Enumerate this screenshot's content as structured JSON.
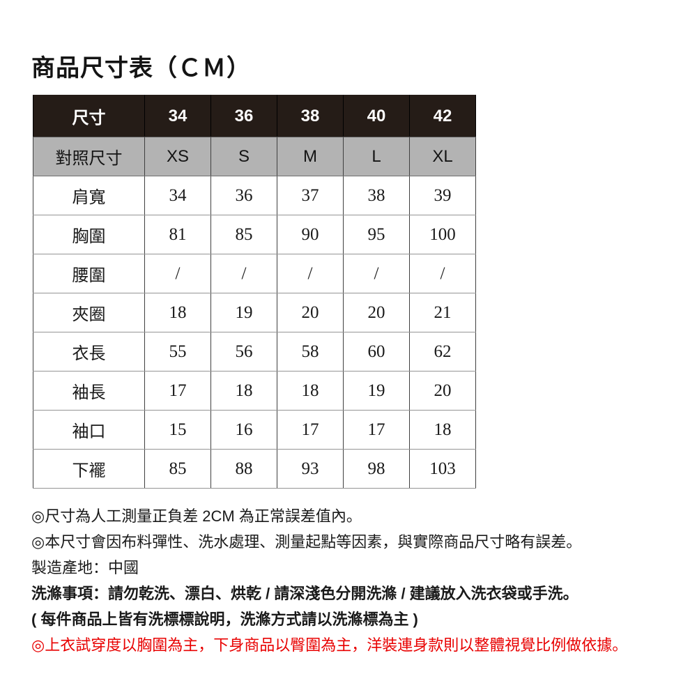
{
  "page": {
    "title": "商品尺寸表（ＣＭ）"
  },
  "size_table": {
    "unit": "CM",
    "columns": [
      "34",
      "36",
      "38",
      "40",
      "42"
    ],
    "rows": [
      {
        "label": "尺寸",
        "values": [
          "34",
          "36",
          "38",
          "40",
          "42"
        ],
        "style": "dark"
      },
      {
        "label": "對照尺寸",
        "values": [
          "XS",
          "S",
          "M",
          "L",
          "XL"
        ],
        "style": "gray"
      },
      {
        "label": "肩寬",
        "values": [
          "34",
          "36",
          "37",
          "38",
          "39"
        ],
        "style": "body"
      },
      {
        "label": "胸圍",
        "values": [
          "81",
          "85",
          "90",
          "95",
          "100"
        ],
        "style": "body"
      },
      {
        "label": "腰圍",
        "values": [
          "/",
          "/",
          "/",
          "/",
          "/"
        ],
        "style": "body"
      },
      {
        "label": "夾圈",
        "values": [
          "18",
          "19",
          "20",
          "20",
          "21"
        ],
        "style": "body"
      },
      {
        "label": "衣長",
        "values": [
          "55",
          "56",
          "58",
          "60",
          "62"
        ],
        "style": "body"
      },
      {
        "label": "袖長",
        "values": [
          "17",
          "18",
          "18",
          "19",
          "20"
        ],
        "style": "body"
      },
      {
        "label": "袖口",
        "values": [
          "15",
          "16",
          "17",
          "17",
          "18"
        ],
        "style": "body"
      },
      {
        "label": "下襬",
        "values": [
          "85",
          "88",
          "93",
          "98",
          "103"
        ],
        "style": "body"
      }
    ]
  },
  "notes": [
    {
      "text": "◎尺寸為人工測量正負差 2CM 為正常誤差值內。",
      "bold": false,
      "color": "#1a1a1a"
    },
    {
      "text": "◎本尺寸會因布料彈性、洗水處理、測量起點等因素，與實際商品尺寸略有誤差。",
      "bold": false,
      "color": "#1a1a1a"
    },
    {
      "text": "製造產地：中國",
      "bold": false,
      "color": "#1a1a1a"
    },
    {
      "text": "洗滌事項：請勿乾洗、漂白、烘乾 / 請深淺色分開洗滌 / 建議放入洗衣袋或手洗。",
      "bold": true,
      "color": "#1a1a1a"
    },
    {
      "text": "( 每件商品上皆有洗標標說明，洗滌方式請以洗滌標為主 )",
      "bold": true,
      "color": "#1a1a1a"
    },
    {
      "text": "◎上衣試穿度以胸圍為主，下身商品以臀圍為主，洋裝連身款則以整體視覺比例做依據。",
      "bold": false,
      "color": "#e80000"
    }
  ],
  "colors": {
    "header_dark_bg": "#251c17",
    "header_dark_text": "#ffffff",
    "compare_gray_bg": "#b3b3b3",
    "border_vertical": "#3f3f3f",
    "border_horizontal": "#949494",
    "note_highlight_red": "#e80000",
    "text": "#1a1a1a",
    "background": "#ffffff"
  }
}
